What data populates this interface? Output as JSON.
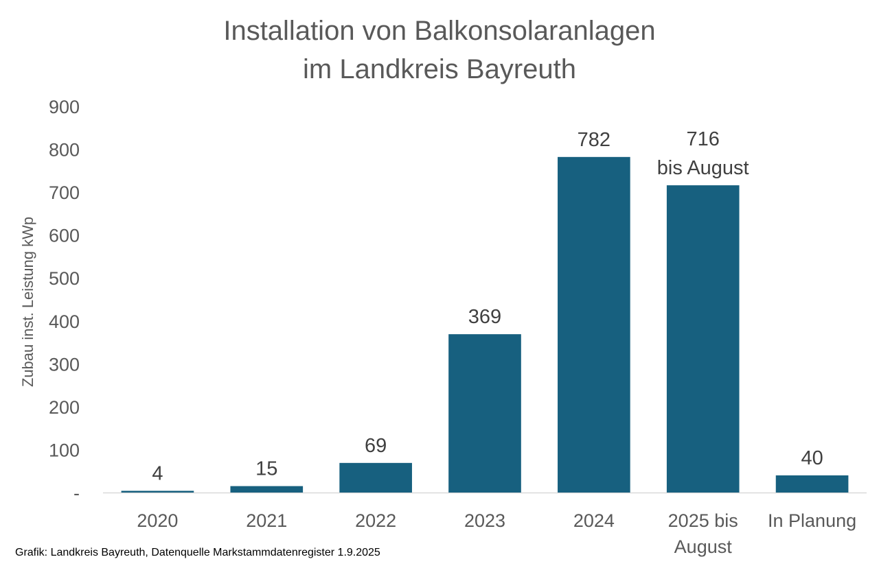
{
  "chart_data": {
    "type": "bar",
    "title_lines": [
      "Installation von Balkonsolaranlagen",
      "im Landkreis Bayreuth"
    ],
    "ylabel": "Zubau inst. Leistung kWp",
    "xlabel": "",
    "ylim": [
      0,
      900
    ],
    "yticks": [
      0,
      100,
      200,
      300,
      400,
      500,
      600,
      700,
      800,
      900
    ],
    "ytick_labels": [
      "-",
      "100",
      "200",
      "300",
      "400",
      "500",
      "600",
      "700",
      "800",
      "900"
    ],
    "categories": [
      [
        "2020"
      ],
      [
        "2021"
      ],
      [
        "2022"
      ],
      [
        "2023"
      ],
      [
        "2024"
      ],
      [
        "2025 bis",
        "August"
      ],
      [
        "In Planung"
      ]
    ],
    "values": [
      4,
      15,
      69,
      369,
      782,
      716,
      40
    ],
    "data_labels": [
      [
        "4"
      ],
      [
        "15"
      ],
      [
        "69"
      ],
      [
        "369"
      ],
      [
        "782"
      ],
      [
        "716",
        "bis August"
      ],
      [
        "40"
      ]
    ],
    "grid": false,
    "legend": "none",
    "bar_color": "#17607f",
    "axis_color": "#d9d9d9"
  },
  "footer": {
    "source": "Grafik: Landkreis Bayreuth, Datenquelle Markstammdatenregister 1.9.2025"
  }
}
